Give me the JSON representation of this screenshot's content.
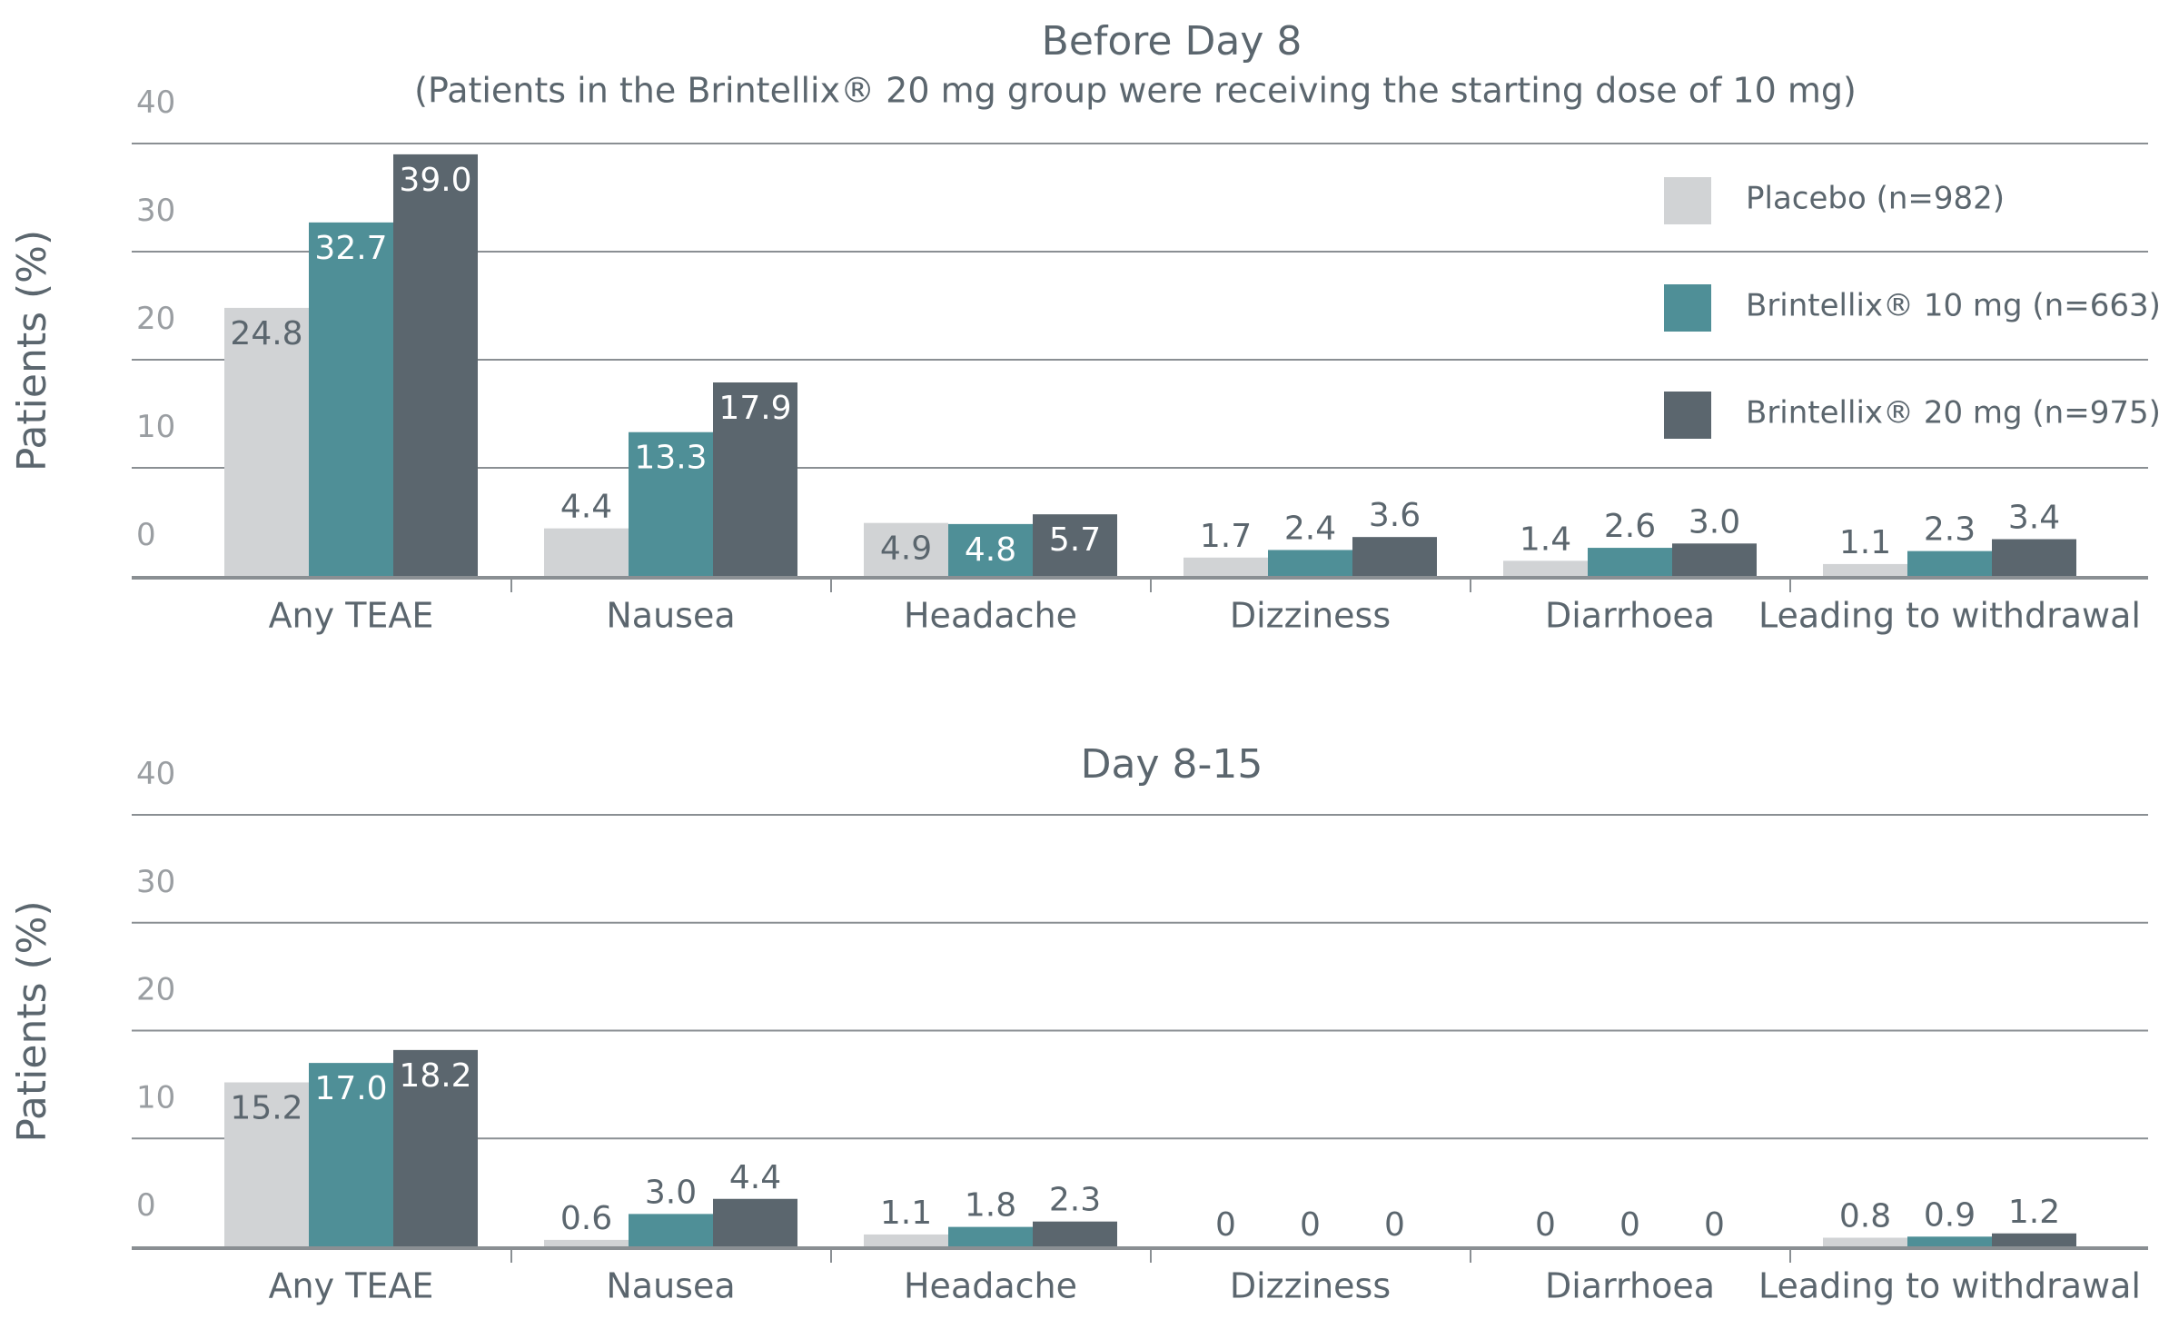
{
  "chart_data": [
    {
      "type": "bar",
      "title": "Before Day 8",
      "subtitle": "(Patients in the Brintellix® 20 mg group were receiving the starting dose of 10 mg)",
      "xlabel": "",
      "ylabel": "Patients (%)",
      "ylim": [
        0,
        40
      ],
      "yticks": [
        "0",
        "10",
        "20",
        "30",
        "40"
      ],
      "grid": true,
      "legend_position": "top-right",
      "categories": [
        "Any TEAE",
        "Nausea",
        "Headache",
        "Dizziness",
        "Diarrhoea",
        "Leading to withdrawal"
      ],
      "series": [
        {
          "name": "Placebo (n=982)",
          "color": "#d1d3d5",
          "values": [
            24.8,
            4.4,
            4.9,
            1.7,
            1.4,
            1.1
          ],
          "labels": [
            "24.8",
            "4.4",
            "4.9",
            "1.7",
            "1.4",
            "1.1"
          ]
        },
        {
          "name": "Brintellix® 10 mg (n=663)",
          "color": "#4f8f97",
          "values": [
            32.7,
            13.3,
            4.8,
            2.4,
            2.6,
            2.3
          ],
          "labels": [
            "32.7",
            "13.3",
            "4.8",
            "2.4",
            "2.6",
            "2.3"
          ]
        },
        {
          "name": "Brintellix® 20 mg (n=975)",
          "color": "#5b666e",
          "values": [
            39.0,
            17.9,
            5.7,
            3.6,
            3.0,
            3.4
          ],
          "labels": [
            "39.0",
            "17.9",
            "5.7",
            "3.6",
            "3.0",
            "3.4"
          ]
        }
      ]
    },
    {
      "type": "bar",
      "title": "Day 8-15",
      "xlabel": "",
      "ylabel": "Patients (%)",
      "ylim": [
        0,
        40
      ],
      "yticks": [
        "0",
        "10",
        "20",
        "30",
        "40"
      ],
      "grid": true,
      "categories": [
        "Any TEAE",
        "Nausea",
        "Headache",
        "Dizziness",
        "Diarrhoea",
        "Leading to withdrawal"
      ],
      "series": [
        {
          "name": "Placebo (n=982)",
          "color": "#d1d3d5",
          "values": [
            15.2,
            0.6,
            1.1,
            0,
            0,
            0.8
          ],
          "labels": [
            "15.2",
            "0.6",
            "1.1",
            "0",
            "0",
            "0.8"
          ]
        },
        {
          "name": "Brintellix® 10 mg (n=663)",
          "color": "#4f8f97",
          "values": [
            17.0,
            3.0,
            1.8,
            0,
            0,
            0.9
          ],
          "labels": [
            "17.0",
            "3.0",
            "1.8",
            "0",
            "0",
            "0.9"
          ]
        },
        {
          "name": "Brintellix® 20 mg (n=975)",
          "color": "#5b666e",
          "values": [
            18.2,
            4.4,
            2.3,
            0,
            0,
            1.2
          ],
          "labels": [
            "18.2",
            "4.4",
            "2.3",
            "0",
            "0",
            "1.2"
          ]
        }
      ]
    }
  ]
}
